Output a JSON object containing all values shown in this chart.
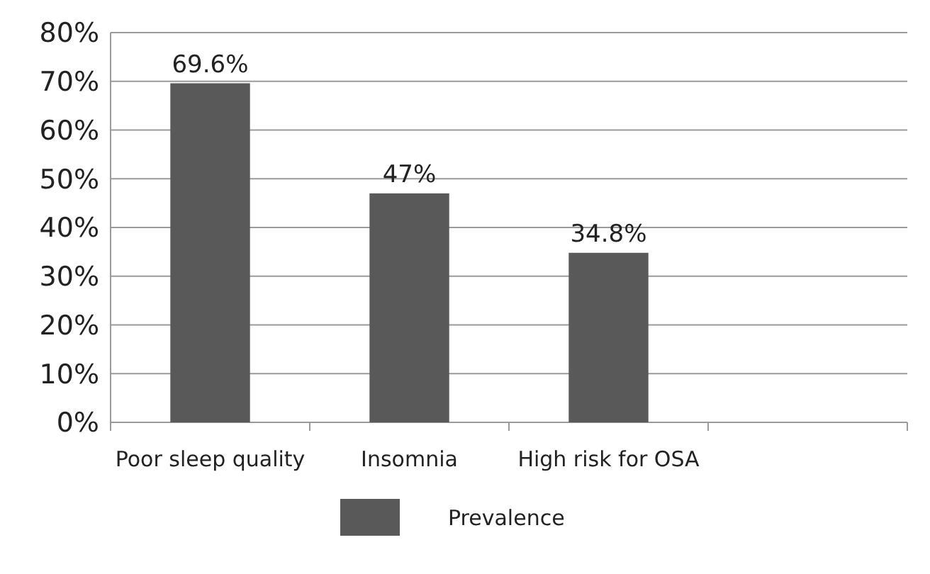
{
  "chart_data": {
    "type": "bar",
    "categories": [
      "Poor sleep quality",
      "Insomnia",
      "High risk for OSA",
      null
    ],
    "series": [
      {
        "name": "Prevalence",
        "color": "#595959",
        "values": [
          69.6,
          47,
          34.8,
          null
        ],
        "value_labels": [
          "69.6%",
          "47%",
          "34.8%",
          null
        ]
      }
    ],
    "ylim": [
      0,
      80
    ],
    "yticks": [
      {
        "value": 0,
        "label": "0%"
      },
      {
        "value": 10,
        "label": "10%"
      },
      {
        "value": 20,
        "label": "20%"
      },
      {
        "value": 30,
        "label": "30%"
      },
      {
        "value": 40,
        "label": "40%"
      },
      {
        "value": 50,
        "label": "50%"
      },
      {
        "value": 60,
        "label": "60%"
      },
      {
        "value": 70,
        "label": "70%"
      },
      {
        "value": 80,
        "label": "80%"
      }
    ],
    "grid": "y",
    "legend": "bottom"
  }
}
